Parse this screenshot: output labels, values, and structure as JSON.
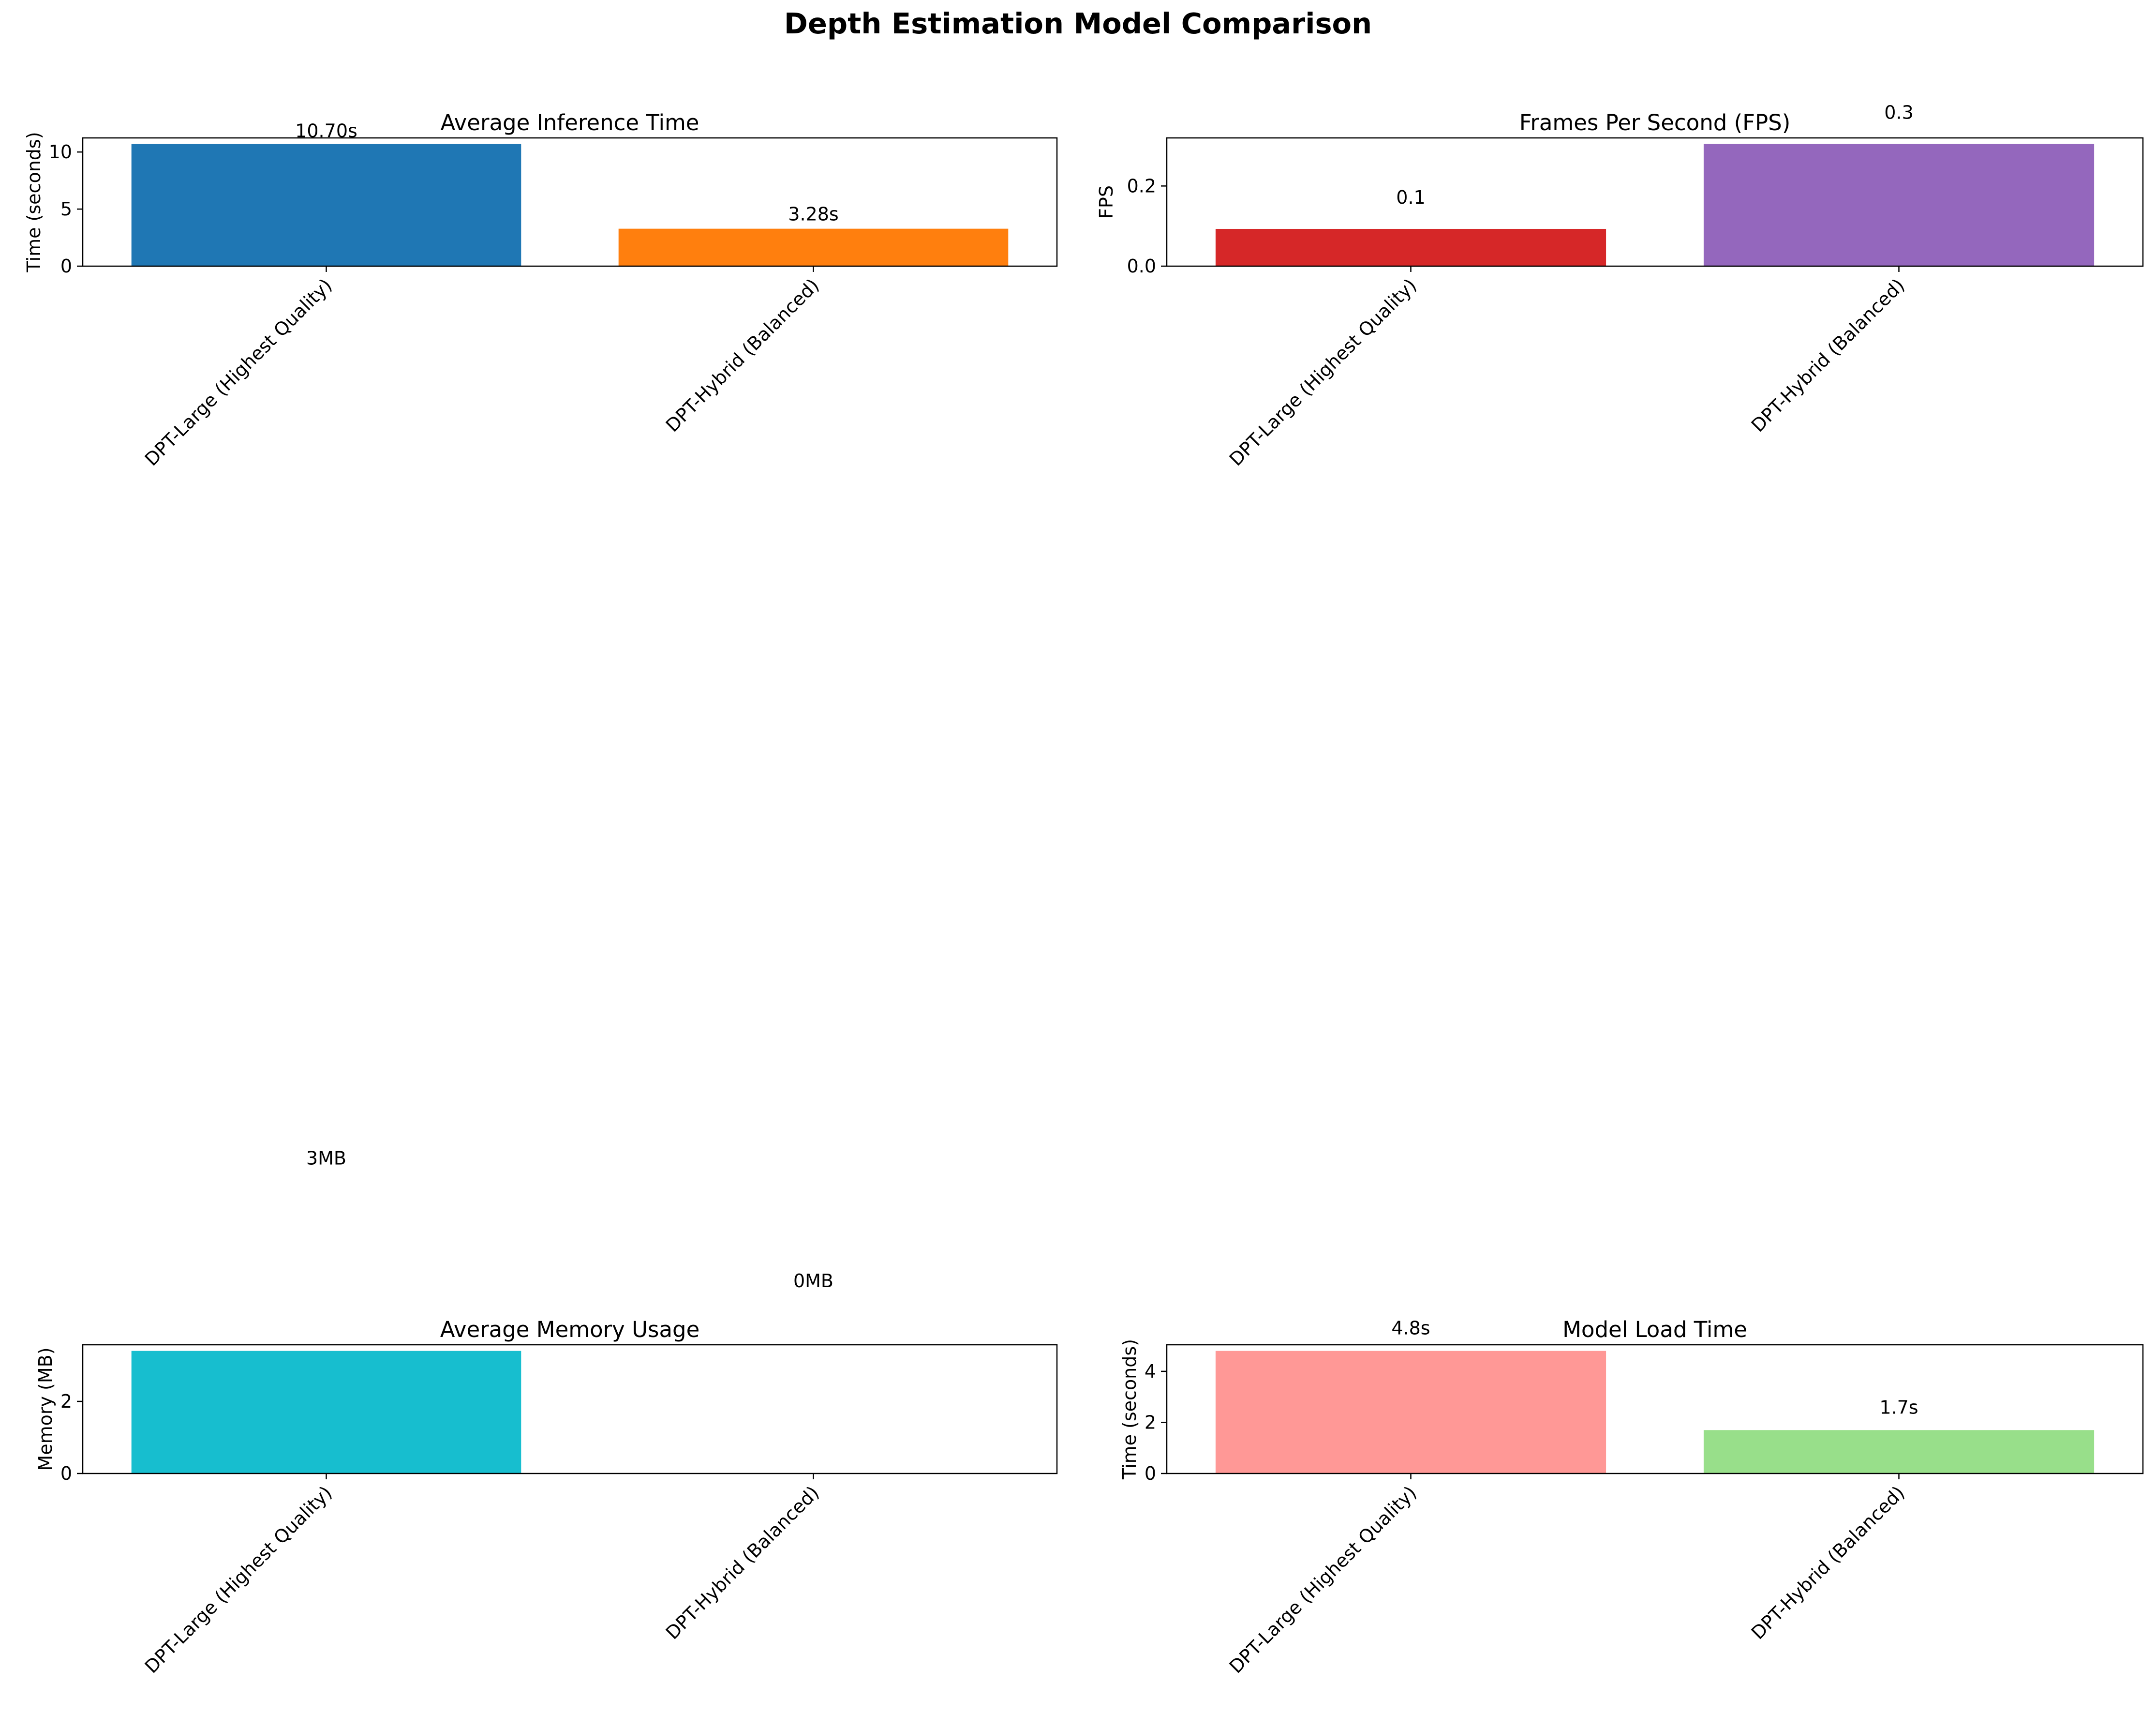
{
  "figure": {
    "title": "Depth Estimation Model Comparison"
  },
  "chart_data": [
    {
      "type": "bar",
      "title": "Average Inference Time",
      "xlabel": "",
      "ylabel": "Time (seconds)",
      "categories": [
        "DPT-Large (Highest Quality)",
        "DPT-Hybrid (Balanced)"
      ],
      "values": [
        10.7,
        3.28
      ],
      "value_labels": [
        "10.70s",
        "3.28s"
      ],
      "colors": [
        "#1f77b4",
        "#ff7f0e"
      ],
      "ylim": [
        0,
        11.235
      ],
      "yticks": [
        0,
        5,
        10
      ],
      "ytick_labels": [
        "0",
        "5",
        "10"
      ],
      "tick_label_rotation": 45
    },
    {
      "type": "bar",
      "title": "Frames Per Second (FPS)",
      "xlabel": "",
      "ylabel": "FPS",
      "categories": [
        "DPT-Large (Highest Quality)",
        "DPT-Hybrid (Balanced)"
      ],
      "values": [
        0.093,
        0.305
      ],
      "value_labels": [
        "0.1",
        "0.3"
      ],
      "colors": [
        "#d62728",
        "#9467bd"
      ],
      "ylim": [
        0,
        0.32
      ],
      "yticks": [
        0,
        0.2
      ],
      "ytick_labels": [
        "0.0",
        "0.2"
      ],
      "tick_label_rotation": 45
    },
    {
      "type": "bar",
      "title": "Average Memory Usage",
      "xlabel": "",
      "ylabel": "Memory (MB)",
      "categories": [
        "DPT-Large (Highest Quality)",
        "DPT-Hybrid (Balanced)"
      ],
      "values": [
        3.4,
        0.0
      ],
      "value_labels": [
        "3MB",
        "0MB"
      ],
      "colors": [
        "#17becf",
        "#17becf"
      ],
      "ylim": [
        0,
        3.57
      ],
      "yticks": [
        0,
        2
      ],
      "ytick_labels": [
        "0",
        "2"
      ],
      "tick_label_rotation": 45
    },
    {
      "type": "bar",
      "title": "Model Load Time",
      "xlabel": "",
      "ylabel": "Time (seconds)",
      "categories": [
        "DPT-Large (Highest Quality)",
        "DPT-Hybrid (Balanced)"
      ],
      "values": [
        4.8,
        1.7
      ],
      "value_labels": [
        "4.8s",
        "1.7s"
      ],
      "colors": [
        "#ff9896",
        "#98df8a"
      ],
      "ylim": [
        0,
        5.04
      ],
      "yticks": [
        0,
        2,
        4
      ],
      "ytick_labels": [
        "0",
        "2",
        "4"
      ],
      "tick_label_rotation": 45
    }
  ]
}
